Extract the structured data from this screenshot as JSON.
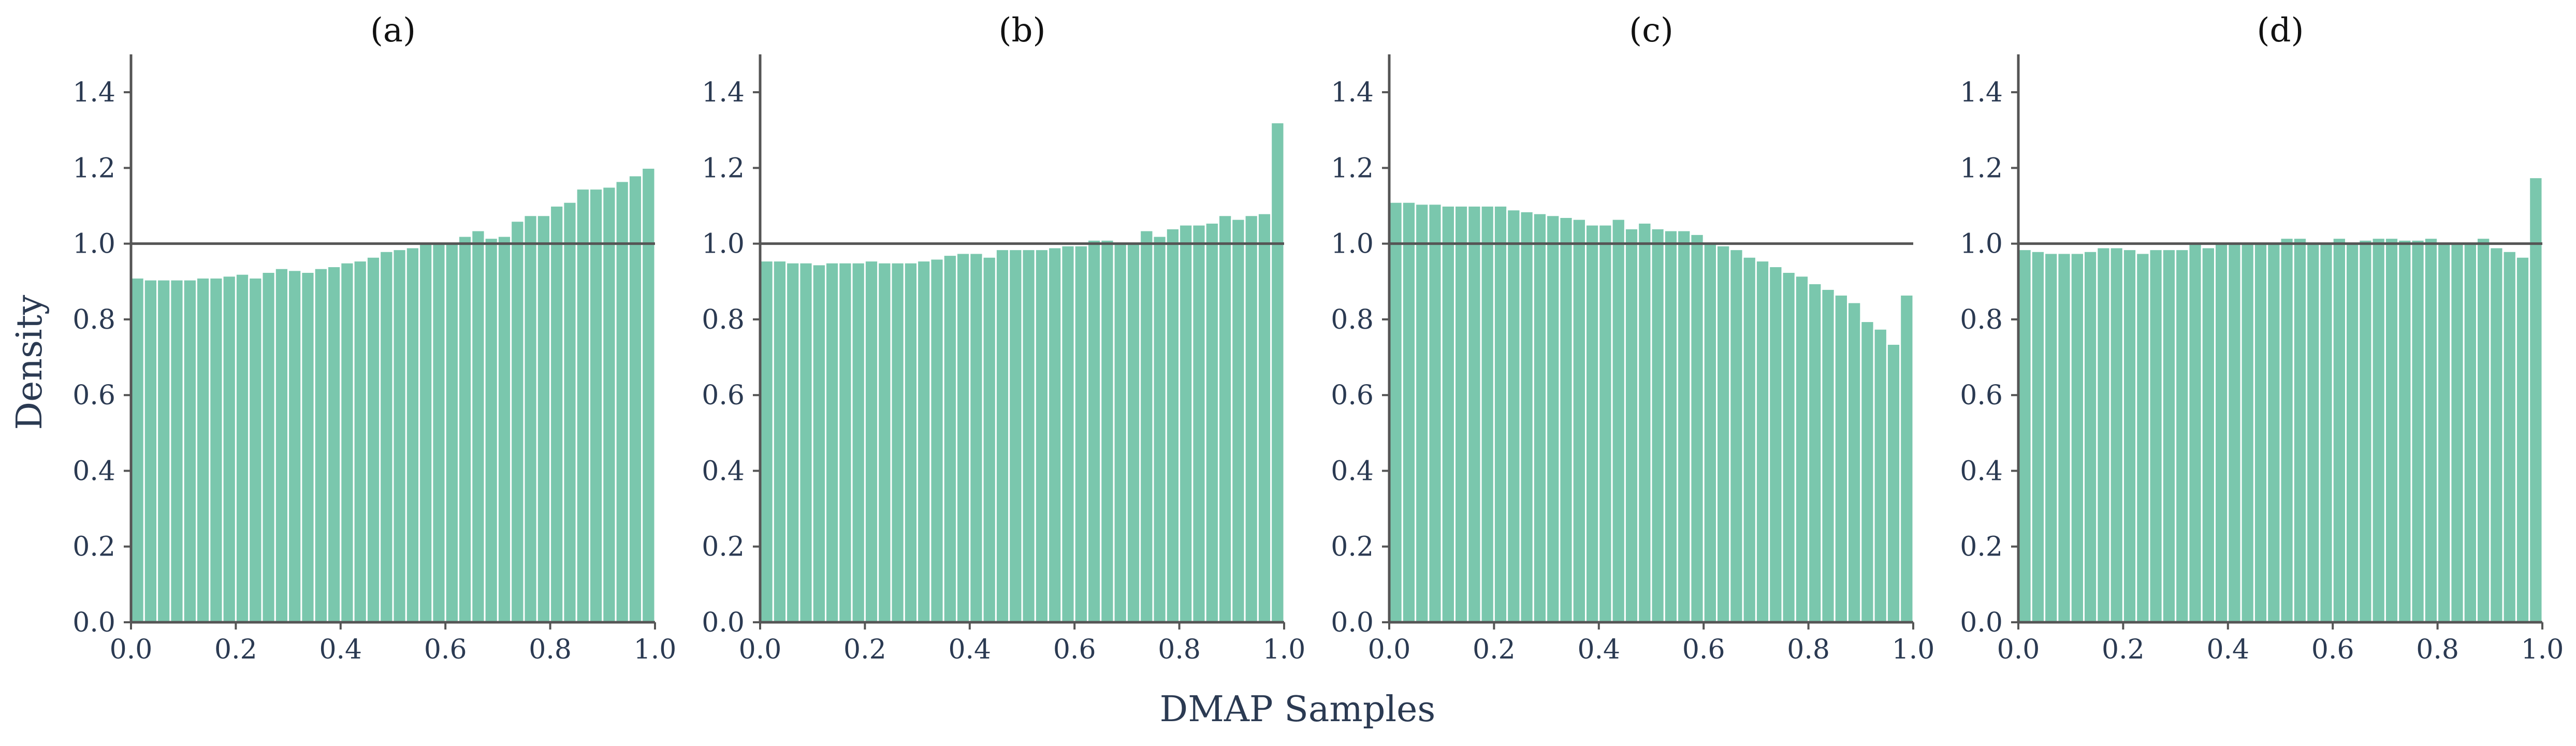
{
  "chart_data": {
    "type": "bar",
    "ylabel": "Density",
    "xlabel": "DMAP Samples",
    "xlim": [
      0,
      1
    ],
    "ylim": [
      0,
      1.5
    ],
    "xticks": [
      "0.0",
      "0.2",
      "0.4",
      "0.6",
      "0.8",
      "1.0"
    ],
    "yticks": [
      "0.0",
      "0.2",
      "0.4",
      "0.6",
      "0.8",
      "1.0",
      "1.2",
      "1.4"
    ],
    "bar_color": "#7ac7ad",
    "reference_line": 1.0,
    "bins": 40,
    "panels": [
      {
        "title": "(a)",
        "values": [
          0.91,
          0.905,
          0.905,
          0.905,
          0.905,
          0.91,
          0.91,
          0.915,
          0.92,
          0.91,
          0.925,
          0.935,
          0.93,
          0.925,
          0.935,
          0.94,
          0.95,
          0.955,
          0.965,
          0.98,
          0.985,
          0.99,
          1.0,
          1.0,
          1.0,
          1.02,
          1.035,
          1.015,
          1.02,
          1.06,
          1.075,
          1.075,
          1.1,
          1.11,
          1.145,
          1.145,
          1.15,
          1.165,
          1.18,
          1.2
        ]
      },
      {
        "title": "(b)",
        "values": [
          0.955,
          0.955,
          0.95,
          0.95,
          0.945,
          0.95,
          0.95,
          0.95,
          0.955,
          0.95,
          0.95,
          0.95,
          0.955,
          0.96,
          0.97,
          0.975,
          0.975,
          0.965,
          0.985,
          0.985,
          0.985,
          0.985,
          0.99,
          0.995,
          0.995,
          1.01,
          1.01,
          1.0,
          1.0,
          1.035,
          1.02,
          1.04,
          1.05,
          1.05,
          1.055,
          1.075,
          1.065,
          1.075,
          1.08,
          1.32
        ]
      },
      {
        "title": "(c)",
        "values": [
          1.11,
          1.11,
          1.105,
          1.105,
          1.1,
          1.1,
          1.1,
          1.1,
          1.1,
          1.09,
          1.085,
          1.08,
          1.075,
          1.07,
          1.065,
          1.05,
          1.05,
          1.065,
          1.04,
          1.055,
          1.04,
          1.035,
          1.035,
          1.025,
          1.005,
          0.995,
          0.985,
          0.965,
          0.955,
          0.94,
          0.925,
          0.915,
          0.895,
          0.88,
          0.865,
          0.845,
          0.795,
          0.775,
          0.735,
          0.865
        ]
      },
      {
        "title": "(d)",
        "values": [
          0.985,
          0.98,
          0.975,
          0.975,
          0.975,
          0.98,
          0.99,
          0.99,
          0.985,
          0.975,
          0.985,
          0.985,
          0.985,
          1.0,
          0.99,
          1.005,
          1.005,
          1.0,
          1.005,
          1.005,
          1.015,
          1.015,
          1.005,
          1.005,
          1.015,
          1.005,
          1.01,
          1.015,
          1.015,
          1.01,
          1.01,
          1.015,
          1.005,
          1.0,
          1.005,
          1.015,
          0.99,
          0.98,
          0.965,
          1.175
        ]
      }
    ]
  }
}
